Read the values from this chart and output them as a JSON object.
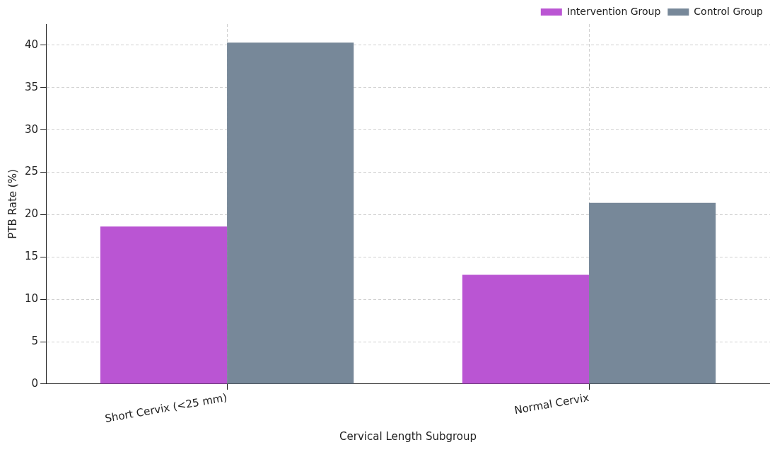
{
  "chart_data": {
    "type": "bar",
    "xlabel": "Cervical Length Subgroup",
    "ylabel": "PTB Rate (%)",
    "categories": [
      "Short Cervix (<25 mm)",
      "Normal Cervix"
    ],
    "series": [
      {
        "name": "Intervention Group",
        "color": "#ba55d3",
        "values": [
          18.6,
          12.9
        ]
      },
      {
        "name": "Control Group",
        "color": "#778899",
        "values": [
          40.3,
          21.4
        ]
      }
    ],
    "ylim": [
      0,
      42.5
    ],
    "yticks": [
      0,
      5,
      10,
      15,
      20,
      25,
      30,
      35,
      40
    ],
    "grid": true,
    "legend": "top right"
  }
}
